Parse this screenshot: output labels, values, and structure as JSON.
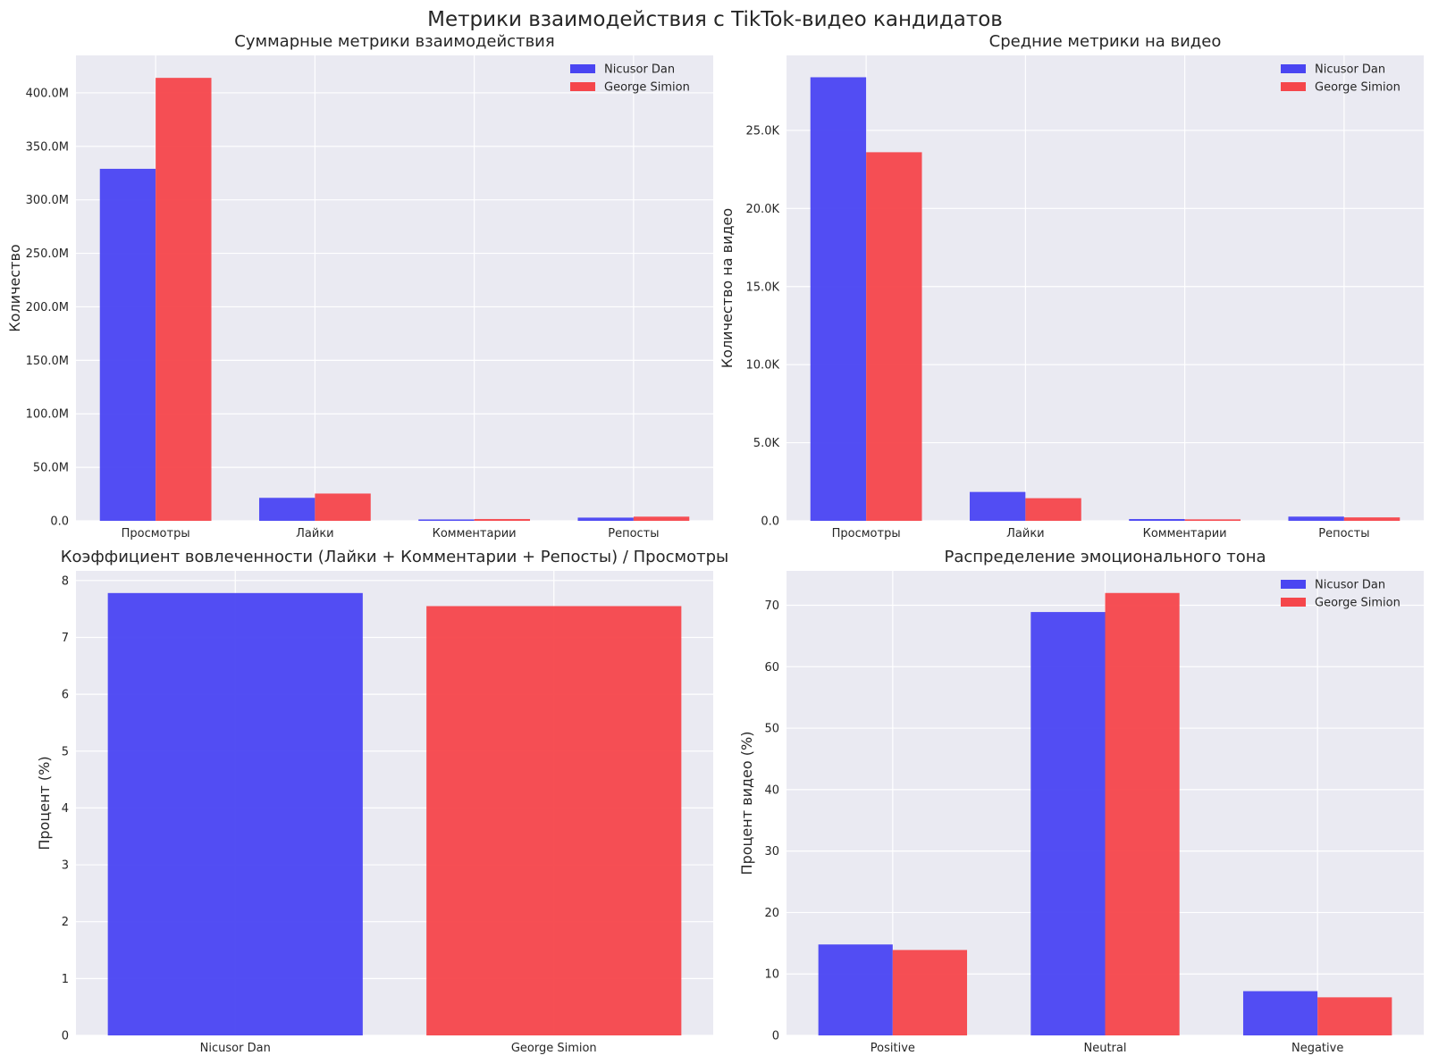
{
  "figure": {
    "suptitle": "Метрики взаимодействия с TikTok-видео кандидатов"
  },
  "colors": {
    "nicusor": "#4a45f2",
    "george": "#f5464b",
    "plot_background": "#eaeaf2",
    "grid": "#ffffff",
    "text": "#262626"
  },
  "chart_data": [
    {
      "type": "bar",
      "title": "Суммарные метрики взаимодействия",
      "xlabel": "",
      "ylabel": "Количество",
      "categories": [
        "Просмотры",
        "Лайки",
        "Комментарии",
        "Репосты"
      ],
      "series": [
        {
          "name": "Nicusor Dan",
          "color": "#4a45f2",
          "values": [
            329000000,
            21500000,
            1300000,
            3000000
          ]
        },
        {
          "name": "George Simion",
          "color": "#f5464b",
          "values": [
            414000000,
            25500000,
            1700000,
            3900000
          ]
        }
      ],
      "ylim": [
        0,
        435000000
      ],
      "yticks": [
        0,
        50000000,
        100000000,
        150000000,
        200000000,
        250000000,
        300000000,
        350000000,
        400000000
      ],
      "ytick_labels": [
        "0.0",
        "50.0M",
        "100.0M",
        "150.0M",
        "200.0M",
        "250.0M",
        "300.0M",
        "350.0M",
        "400.0M"
      ],
      "legend": "top-right",
      "grid": true
    },
    {
      "type": "bar",
      "title": "Средние метрики на видео",
      "xlabel": "",
      "ylabel": "Количество на видео",
      "categories": [
        "Просмотры",
        "Лайки",
        "Комментарии",
        "Репосты"
      ],
      "series": [
        {
          "name": "Nicusor Dan",
          "color": "#4a45f2",
          "values": [
            28400,
            1850,
            115,
            270
          ]
        },
        {
          "name": "George Simion",
          "color": "#f5464b",
          "values": [
            23600,
            1450,
            95,
            220
          ]
        }
      ],
      "ylim": [
        0,
        29800
      ],
      "yticks": [
        0,
        5000,
        10000,
        15000,
        20000,
        25000
      ],
      "ytick_labels": [
        "0.0",
        "5.0K",
        "10.0K",
        "15.0K",
        "20.0K",
        "25.0K"
      ],
      "legend": "top-right",
      "grid": true
    },
    {
      "type": "bar",
      "title": "Коэффициент вовлеченности (Лайки + Комментарии + Репосты) / Просмотры",
      "xlabel": "",
      "ylabel": "Процент (%)",
      "categories": [
        "Nicusor Dan",
        "George Simion"
      ],
      "values": [
        7.78,
        7.55
      ],
      "colors": [
        "#4a45f2",
        "#f5464b"
      ],
      "ylim": [
        0,
        8.17
      ],
      "yticks": [
        0,
        1,
        2,
        3,
        4,
        5,
        6,
        7,
        8
      ],
      "ytick_labels": [
        "0",
        "1",
        "2",
        "3",
        "4",
        "5",
        "6",
        "7",
        "8"
      ],
      "grid": true
    },
    {
      "type": "bar",
      "title": "Распределение эмоционального тона",
      "xlabel": "",
      "ylabel": "Процент видео (%)",
      "categories": [
        "Positive",
        "Neutral",
        "Negative"
      ],
      "series": [
        {
          "name": "Nicusor Dan",
          "color": "#4a45f2",
          "values": [
            14.8,
            68.9,
            7.2
          ]
        },
        {
          "name": "George Simion",
          "color": "#f5464b",
          "values": [
            13.9,
            72.0,
            6.2
          ]
        }
      ],
      "ylim": [
        0,
        75.6
      ],
      "yticks": [
        0,
        10,
        20,
        30,
        40,
        50,
        60,
        70
      ],
      "ytick_labels": [
        "0",
        "10",
        "20",
        "30",
        "40",
        "50",
        "60",
        "70"
      ],
      "legend": "top-right",
      "grid": true
    }
  ]
}
